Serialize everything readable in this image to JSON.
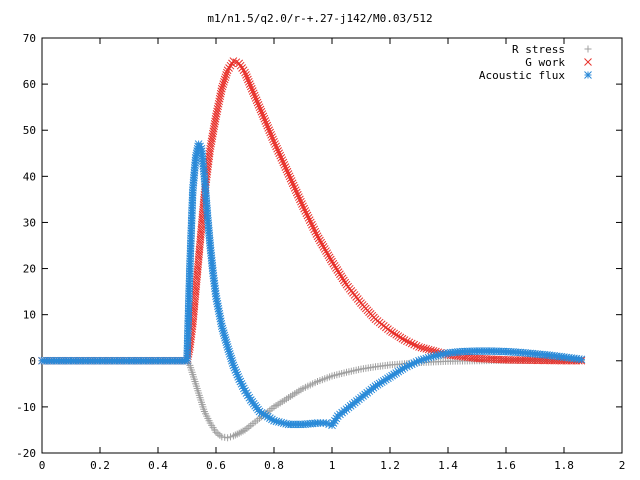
{
  "chart_data": {
    "type": "scatter",
    "title": "m1/n1.5/q2.0/r-+.27-j142/M0.03/512",
    "xlabel": "",
    "ylabel": "",
    "xlim": [
      0,
      2
    ],
    "ylim": [
      -20,
      70
    ],
    "x_ticks": [
      "0",
      "0.2",
      "0.4",
      "0.6",
      "0.8",
      "1",
      "1.2",
      "1.4",
      "1.6",
      "1.8",
      "2"
    ],
    "y_ticks": [
      "-20",
      "-10",
      "0",
      "10",
      "20",
      "30",
      "40",
      "50",
      "60",
      "70"
    ],
    "grid": false,
    "legend_position": "top-right",
    "series": [
      {
        "name": "R stress",
        "marker": "+",
        "color": "#a0a0a0",
        "x": [
          0.0,
          0.1,
          0.2,
          0.3,
          0.4,
          0.5,
          0.51,
          0.52,
          0.53,
          0.54,
          0.55,
          0.56,
          0.58,
          0.6,
          0.62,
          0.64,
          0.66,
          0.68,
          0.7,
          0.72,
          0.75,
          0.8,
          0.85,
          0.9,
          0.95,
          1.0,
          1.05,
          1.1,
          1.15,
          1.2,
          1.3,
          1.4,
          1.5,
          1.6,
          1.7,
          1.8,
          1.86
        ],
        "y": [
          0,
          0,
          0,
          0,
          0,
          0,
          -1,
          -3,
          -5,
          -7,
          -9,
          -11,
          -13.5,
          -15.5,
          -16.5,
          -16.7,
          -16.3,
          -15.7,
          -15,
          -14,
          -12.5,
          -10,
          -8,
          -6,
          -4.5,
          -3.3,
          -2.5,
          -1.8,
          -1.3,
          -0.9,
          -0.4,
          -0.1,
          0,
          0.1,
          0.1,
          0.1,
          0.1
        ]
      },
      {
        "name": "G work",
        "marker": "x",
        "color": "#e8302a",
        "x": [
          0.0,
          0.1,
          0.2,
          0.3,
          0.4,
          0.5,
          0.51,
          0.52,
          0.53,
          0.54,
          0.55,
          0.56,
          0.57,
          0.58,
          0.6,
          0.62,
          0.64,
          0.66,
          0.68,
          0.7,
          0.72,
          0.75,
          0.8,
          0.85,
          0.9,
          0.95,
          1.0,
          1.05,
          1.1,
          1.15,
          1.2,
          1.25,
          1.3,
          1.4,
          1.5,
          1.6,
          1.7,
          1.8,
          1.86
        ],
        "y": [
          0,
          0,
          0,
          0,
          0,
          0,
          3,
          8,
          15,
          22,
          29,
          36,
          41,
          46,
          53,
          59,
          63,
          65,
          64.5,
          62.5,
          59.5,
          55,
          47.5,
          40.5,
          33.5,
          27,
          21.5,
          16.5,
          12.5,
          9,
          6.5,
          4.5,
          3,
          1.3,
          0.5,
          0.2,
          0.1,
          0,
          0
        ]
      },
      {
        "name": "Acoustic flux",
        "marker": "*",
        "color": "#2a8ad8",
        "x": [
          0.0,
          0.1,
          0.2,
          0.3,
          0.4,
          0.5,
          0.51,
          0.52,
          0.53,
          0.54,
          0.55,
          0.56,
          0.57,
          0.58,
          0.59,
          0.6,
          0.62,
          0.64,
          0.66,
          0.68,
          0.7,
          0.72,
          0.75,
          0.8,
          0.85,
          0.9,
          0.95,
          0.98,
          1.0,
          1.02,
          1.05,
          1.1,
          1.15,
          1.2,
          1.25,
          1.3,
          1.35,
          1.4,
          1.45,
          1.5,
          1.55,
          1.6,
          1.65,
          1.7,
          1.75,
          1.8,
          1.86
        ],
        "y": [
          0,
          0,
          0,
          0,
          0,
          0,
          20.5,
          37,
          44,
          47,
          46,
          40,
          32,
          25,
          19,
          14,
          7.5,
          3,
          -1,
          -4,
          -6.5,
          -8.5,
          -11,
          -13,
          -13.8,
          -13.8,
          -13.5,
          -13.5,
          -14,
          -12,
          -10.5,
          -8,
          -5.5,
          -3.5,
          -1.5,
          0,
          1,
          1.7,
          2,
          2.1,
          2.1,
          2,
          1.8,
          1.5,
          1.2,
          0.8,
          0.3
        ]
      }
    ]
  }
}
